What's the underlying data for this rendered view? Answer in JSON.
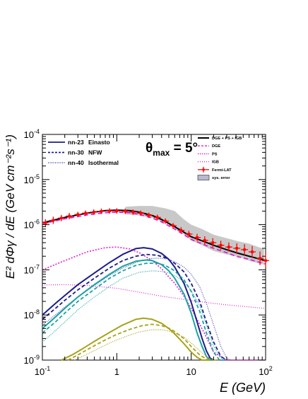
{
  "chart_data": {
    "type": "line",
    "xscale": "log",
    "yscale": "log",
    "xlim": [
      0.1,
      100
    ],
    "ylim": [
      1e-09,
      0.0001
    ],
    "xlabel": "E (GeV)",
    "ylabel": "E² dΦγ / dE (GeV cm⁻²s⁻¹)",
    "annotation": "θmax = 5°",
    "x_tick_labels": [
      "10-1",
      "1",
      "10",
      "102"
    ],
    "y_tick_labels": [
      "10-9",
      "10-8",
      "10-7",
      "10-6",
      "10-5",
      "10-4"
    ],
    "legend_left": [
      {
        "model": "nn-23",
        "profile": "Einasto",
        "profile_color": "#1c1c8c",
        "style": "solid"
      },
      {
        "model": "nn-30",
        "profile": "NFW",
        "profile_color": "#1aa3a3",
        "style": "dashed"
      },
      {
        "model": "nn-40",
        "profile": "Isothermal",
        "profile_color": "#a8a21a",
        "style": "dotted"
      }
    ],
    "legend_right": [
      {
        "label": "DGE + PS + IGB",
        "color": "#000000",
        "style": "solid"
      },
      {
        "label": "DGE",
        "color": "#e020d0",
        "style": "dashed"
      },
      {
        "label": "PS",
        "color": "#e020d0",
        "style": "dotted-fine"
      },
      {
        "label": "IGB",
        "color": "#e020d0",
        "style": "dotted"
      },
      {
        "label": "Fermi-LAT",
        "color": "#ff0000",
        "style": "marker"
      },
      {
        "label": "sys. error",
        "color": "#b8b8d0",
        "style": "box"
      }
    ],
    "colors": {
      "einasto": "#1c1c8c",
      "nfw": "#1aa3a3",
      "isothermal": "#a8a21a",
      "background": "#e020d0",
      "total": "#000000",
      "fermi": "#ff0000",
      "band": "#c8c8c8"
    },
    "sys_band": {
      "x": [
        1.3,
        2,
        3,
        4.5,
        6,
        8,
        10,
        14,
        20,
        30,
        45,
        60,
        80,
        95
      ],
      "upper": [
        2.5e-06,
        2.6e-06,
        2.6e-06,
        2.3e-06,
        2e-06,
        1.3e-06,
        1e-06,
        8e-07,
        6e-07,
        5e-07,
        4.2e-07,
        3.8e-07,
        3.2e-07,
        2.9e-07
      ],
      "lower": [
        1.7e-06,
        1.6e-06,
        1.4e-06,
        1.1e-06,
        8.5e-07,
        6e-07,
        4.5e-07,
        3.5e-07,
        2.6e-07,
        2.2e-07,
        1.9e-07,
        1.6e-07,
        1.4e-07,
        1.3e-07
      ]
    },
    "series": [
      {
        "name": "DGE + PS + IGB",
        "key": "total",
        "color": "#000000",
        "width": 2,
        "dash": "",
        "x": [
          0.1,
          0.2,
          0.4,
          0.7,
          1,
          1.5,
          2,
          3,
          4,
          6,
          8,
          10,
          15,
          20,
          30,
          40,
          60,
          100
        ],
        "y": [
          1.1e-06,
          1.45e-06,
          1.8e-06,
          2.05e-06,
          2.1e-06,
          2.05e-06,
          1.9e-06,
          1.6e-06,
          1.3e-06,
          9e-07,
          6.8e-07,
          5.4e-07,
          4.2e-07,
          3.5e-07,
          2.8e-07,
          2.4e-07,
          2e-07,
          1.6e-07
        ]
      },
      {
        "name": "DGE",
        "key": "dge",
        "color": "#e020d0",
        "width": 1.8,
        "dash": "6,4",
        "x": [
          0.1,
          0.2,
          0.4,
          0.7,
          1,
          1.5,
          2,
          3,
          4,
          6,
          8,
          10,
          15,
          20,
          30,
          40,
          60,
          100
        ],
        "y": [
          1.05e-06,
          1.35e-06,
          1.65e-06,
          1.85e-06,
          1.9e-06,
          1.85e-06,
          1.7e-06,
          1.4e-06,
          1.15e-06,
          8e-07,
          6e-07,
          4.7e-07,
          3.6e-07,
          3e-07,
          2.4e-07,
          2e-07,
          1.7e-07,
          1.35e-07
        ]
      },
      {
        "name": "PS",
        "key": "ps",
        "color": "#e020d0",
        "width": 1.6,
        "dash": "2,2",
        "x": [
          0.1,
          0.2,
          0.4,
          0.7,
          1,
          1.5,
          2,
          3,
          4,
          6,
          8,
          10,
          15,
          20,
          30,
          40,
          60,
          100
        ],
        "y": [
          1e-07,
          1.6e-07,
          2.5e-07,
          3.1e-07,
          3.2e-07,
          2.9e-07,
          2.4e-07,
          1.6e-07,
          1.05e-07,
          5e-08,
          2.6e-08,
          1.4e-08,
          4e-09,
          1.5e-09,
          1e-09,
          1e-09,
          1e-09,
          1e-09
        ]
      },
      {
        "name": "IGB",
        "key": "igb",
        "color": "#e020d0",
        "width": 1.2,
        "dash": "1,2",
        "x": [
          0.1,
          0.2,
          0.4,
          1,
          2,
          4,
          10,
          20,
          40,
          100
        ],
        "y": [
          4.6e-08,
          4.7e-08,
          4.5e-08,
          3.9e-08,
          3.2e-08,
          2.6e-08,
          2.1e-08,
          1.8e-08,
          1.6e-08,
          1.4e-08
        ]
      },
      {
        "name": "nn-23 Einasto",
        "key": "ein23",
        "color": "#1c1c8c",
        "width": 2,
        "dash": "",
        "x": [
          0.1,
          0.15,
          0.2,
          0.3,
          0.5,
          0.8,
          1.2,
          1.8,
          2.3,
          3,
          4,
          5,
          6,
          8,
          10,
          12,
          14,
          16,
          18,
          20
        ],
        "y": [
          1e-08,
          1.8e-08,
          2.7e-08,
          4.7e-08,
          8.5e-08,
          1.45e-07,
          2.2e-07,
          2.95e-07,
          3.1e-07,
          2.9e-07,
          2.3e-07,
          1.7e-07,
          1.15e-07,
          5e-08,
          1.9e-08,
          7e-09,
          3e-09,
          1.6e-09,
          1.1e-09,
          1e-09
        ]
      },
      {
        "name": "nn-30 Einasto",
        "key": "ein30",
        "color": "#1c1c8c",
        "width": 1.8,
        "dash": "5,3",
        "x": [
          0.1,
          0.15,
          0.2,
          0.3,
          0.5,
          0.8,
          1.2,
          1.8,
          2.5,
          3.5,
          4.5,
          6,
          8,
          10,
          13,
          16,
          20,
          25,
          30
        ],
        "y": [
          8e-09,
          1.4e-08,
          2.1e-08,
          3.6e-08,
          6.5e-08,
          1.1e-07,
          1.6e-07,
          2e-07,
          2.2e-07,
          2.1e-07,
          1.85e-07,
          1.4e-07,
          9e-08,
          5e-08,
          2e-08,
          7e-09,
          2.5e-09,
          1.2e-09,
          1e-09
        ]
      },
      {
        "name": "nn-40 Einasto",
        "key": "ein40",
        "color": "#4a4aa8",
        "width": 1.2,
        "dash": "1,1.6",
        "x": [
          0.1,
          0.15,
          0.2,
          0.3,
          0.5,
          0.8,
          1.2,
          2,
          3,
          4,
          5,
          6,
          8,
          10,
          13,
          16,
          20,
          25,
          30,
          34
        ],
        "y": [
          6e-09,
          1e-08,
          1.5e-08,
          2.5e-08,
          4.5e-08,
          7.5e-08,
          1.1e-07,
          1.55e-07,
          1.8e-07,
          1.8e-07,
          1.7e-07,
          1.5e-07,
          1.15e-07,
          8e-08,
          4.2e-08,
          1.8e-08,
          6e-09,
          2e-09,
          1.1e-09,
          1e-09
        ]
      },
      {
        "name": "nn-23 NFW",
        "key": "nfw23",
        "color": "#1aa3a3",
        "width": 2,
        "dash": "",
        "x": [
          0.1,
          0.15,
          0.2,
          0.3,
          0.5,
          0.8,
          1.2,
          1.8,
          2.5,
          3,
          4,
          5,
          6,
          8,
          10,
          12,
          14,
          16,
          18,
          20
        ],
        "y": [
          5e-09,
          9e-09,
          1.4e-08,
          2.5e-08,
          4.7e-08,
          8e-08,
          1.2e-07,
          1.55e-07,
          1.65e-07,
          1.6e-07,
          1.3e-07,
          9.5e-08,
          6.5e-08,
          2.9e-08,
          1.1e-08,
          4e-09,
          2e-09,
          1.2e-09,
          1e-09,
          1e-09
        ]
      },
      {
        "name": "nn-30 NFW",
        "key": "nfw30",
        "color": "#1aa3a3",
        "width": 1.8,
        "dash": "5,3",
        "x": [
          0.1,
          0.15,
          0.2,
          0.3,
          0.5,
          0.8,
          1.2,
          1.8,
          2.5,
          3.5,
          4.5,
          6,
          8,
          10,
          13,
          16,
          20,
          24,
          28
        ],
        "y": [
          4e-09,
          7e-09,
          1.1e-08,
          2e-08,
          3.7e-08,
          6.5e-08,
          9.5e-08,
          1.25e-07,
          1.4e-07,
          1.4e-07,
          1.25e-07,
          9.5e-08,
          6e-08,
          3.3e-08,
          1.2e-08,
          4e-09,
          1.5e-09,
          1e-09,
          1e-09
        ]
      },
      {
        "name": "nn-40 NFW",
        "key": "nfw40",
        "color": "#1aa3a3",
        "width": 1.2,
        "dash": "1,1.6",
        "x": [
          0.1,
          0.15,
          0.2,
          0.3,
          0.5,
          0.8,
          1.2,
          2,
          3,
          4,
          5,
          6,
          8,
          10,
          13,
          16,
          20,
          25,
          30
        ],
        "y": [
          2.5e-09,
          4.5e-09,
          7e-09,
          1.3e-08,
          2.5e-08,
          4.3e-08,
          6.5e-08,
          8.8e-08,
          9.5e-08,
          9.2e-08,
          8.5e-08,
          7.5e-08,
          5.5e-08,
          3.5e-08,
          1.6e-08,
          6e-09,
          2e-09,
          1.1e-09,
          1e-09
        ]
      },
      {
        "name": "nn-23 Isothermal",
        "key": "iso23",
        "color": "#a8a21a",
        "width": 2,
        "dash": "",
        "x": [
          0.18,
          0.25,
          0.35,
          0.5,
          0.8,
          1.2,
          1.8,
          2.3,
          3,
          4,
          5,
          6,
          8,
          10,
          12,
          14,
          16,
          18
        ],
        "y": [
          1e-09,
          1.3e-09,
          1.8e-09,
          2.6e-09,
          4.1e-09,
          6e-09,
          8e-09,
          8.5e-09,
          8e-09,
          6.5e-09,
          5e-09,
          3.8e-09,
          2.3e-09,
          1.5e-09,
          1.15e-09,
          1e-09,
          1e-09,
          1e-09
        ]
      },
      {
        "name": "nn-30 Isothermal",
        "key": "iso30",
        "color": "#a8a21a",
        "width": 1.8,
        "dash": "5,3",
        "x": [
          0.22,
          0.3,
          0.45,
          0.7,
          1,
          1.5,
          2.2,
          3,
          4,
          5,
          6,
          8,
          10,
          13,
          16,
          19,
          22
        ],
        "y": [
          1e-09,
          1.3e-09,
          1.9e-09,
          2.8e-09,
          3.7e-09,
          4.8e-09,
          5.8e-09,
          6.2e-09,
          5.8e-09,
          5.1e-09,
          4.3e-09,
          3e-09,
          2e-09,
          1.3e-09,
          1.05e-09,
          1e-09,
          1e-09
        ]
      },
      {
        "name": "nn-40 Isothermal",
        "key": "iso40",
        "color": "#a8a21a",
        "width": 1.2,
        "dash": "1,1.6",
        "x": [
          0.27,
          0.4,
          0.6,
          0.9,
          1.3,
          2,
          3,
          4,
          5,
          6,
          8,
          10,
          13,
          16,
          20,
          24
        ],
        "y": [
          1e-09,
          1.35e-09,
          1.9e-09,
          2.6e-09,
          3.3e-09,
          4.2e-09,
          4.7e-09,
          4.7e-09,
          4.4e-09,
          4e-09,
          3.2e-09,
          2.4e-09,
          1.6e-09,
          1.2e-09,
          1e-09,
          1e-09
        ]
      }
    ],
    "fermi_points": {
      "x": [
        0.11,
        0.14,
        0.18,
        0.23,
        0.3,
        0.38,
        0.49,
        0.62,
        0.8,
        1.0,
        1.3,
        1.65,
        2.1,
        2.7,
        3.5,
        4.5,
        5.7,
        7.3,
        9.3,
        12,
        15.2,
        19.5,
        25,
        32,
        41,
        52,
        66,
        84,
        100
      ],
      "y": [
        1.1e-06,
        1.25e-06,
        1.4e-06,
        1.55e-06,
        1.68e-06,
        1.8e-06,
        1.9e-06,
        1.98e-06,
        2.02e-06,
        2.02e-06,
        1.98e-06,
        1.9e-06,
        1.8e-06,
        1.62e-06,
        1.45e-06,
        1.2e-06,
        9.5e-07,
        7.5e-07,
        6.2e-07,
        5.2e-07,
        4.5e-07,
        4e-07,
        3.5e-07,
        3.2e-07,
        3e-07,
        2.8e-07,
        2.5e-07,
        1.8e-07,
        1.6e-07
      ],
      "yerr": [
        0.08,
        0.08,
        0.07,
        0.07,
        0.06,
        0.06,
        0.06,
        0.06,
        0.06,
        0.06,
        0.06,
        0.06,
        0.06,
        0.06,
        0.06,
        0.06,
        0.06,
        0.07,
        0.07,
        0.08,
        0.09,
        0.1,
        0.1,
        0.1,
        0.11,
        0.12,
        0.13,
        0.15,
        0.15
      ],
      "show_xbar": [
        true,
        true,
        true,
        true,
        true,
        true,
        true,
        true,
        true,
        true,
        true,
        true,
        true,
        true,
        true,
        true,
        true,
        true,
        true,
        true,
        true,
        true,
        true,
        true,
        true,
        true,
        true,
        true,
        true
      ]
    }
  }
}
